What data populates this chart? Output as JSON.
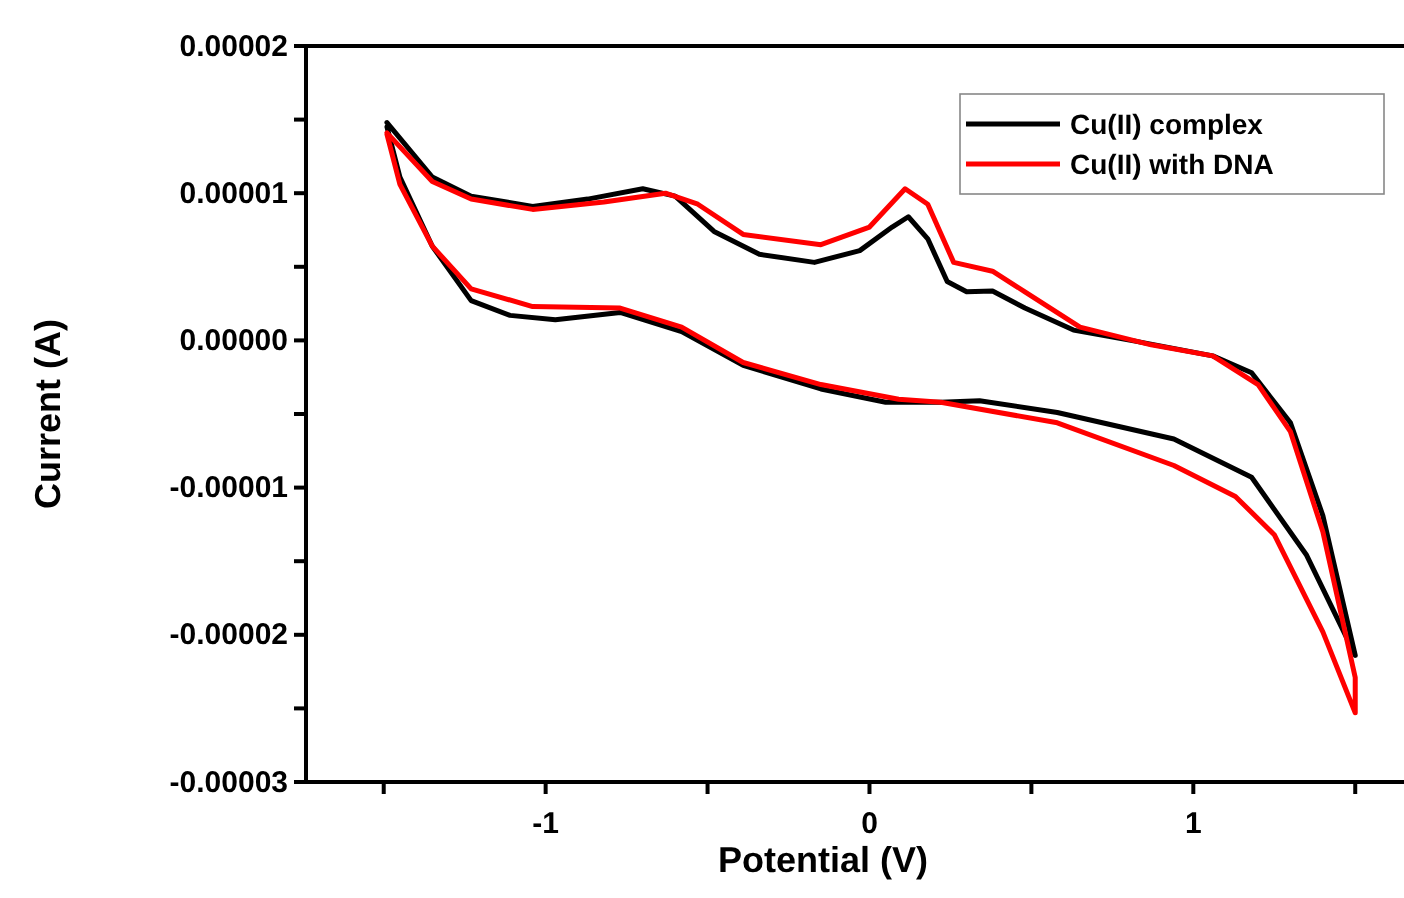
{
  "chart_data": {
    "type": "line",
    "xlabel": "Potential (V)",
    "ylabel": "Current (A)",
    "xlim": [
      -1.74,
      1.7
    ],
    "ylim": [
      -3e-05,
      2e-05
    ],
    "xticks": [
      {
        "value": -1.5,
        "label": null
      },
      {
        "value": -1,
        "label": "-1"
      },
      {
        "value": -0.5,
        "label": null
      },
      {
        "value": 0,
        "label": "0"
      },
      {
        "value": 0.5,
        "label": null
      },
      {
        "value": 1,
        "label": "1"
      },
      {
        "value": 1.5,
        "label": null
      }
    ],
    "yticks": [
      {
        "value": -3e-05,
        "label": "-0.00003"
      },
      {
        "value": -2.5e-05,
        "label": null
      },
      {
        "value": -2e-05,
        "label": "-0.00002"
      },
      {
        "value": -1.5e-05,
        "label": null
      },
      {
        "value": -1e-05,
        "label": "-0.00001"
      },
      {
        "value": -5e-06,
        "label": null
      },
      {
        "value": 0,
        "label": "0.00000"
      },
      {
        "value": 5e-06,
        "label": null
      },
      {
        "value": 1e-05,
        "label": "0.00001"
      },
      {
        "value": 1.5e-05,
        "label": null
      },
      {
        "value": 2e-05,
        "label": "0.00002"
      }
    ],
    "grid": false,
    "legend": "top right",
    "marker": "none",
    "line_style": "solid",
    "series": [
      {
        "name": "Cu(II) complex",
        "color": "#000000",
        "x": [
          -1.49,
          -1.35,
          -1.23,
          -1.04,
          -0.87,
          -0.7,
          -0.6,
          -0.48,
          -0.34,
          -0.17,
          -0.03,
          0.07,
          0.12,
          0.18,
          0.24,
          0.3,
          0.38,
          0.48,
          0.63,
          0.82,
          1.06,
          1.18,
          1.3,
          1.4,
          1.5,
          1.35,
          1.18,
          0.94,
          0.58,
          0.34,
          0.22,
          0.05,
          -0.15,
          -0.39,
          -0.58,
          -0.77,
          -0.97,
          -1.11,
          -1.23,
          -1.35,
          -1.45,
          -1.49
        ],
        "values": [
          1.48e-05,
          1.11e-05,
          9.8e-06,
          9.1e-06,
          9.6e-06,
          1.03e-05,
          9.8e-06,
          7.4e-06,
          5.85e-06,
          5.3e-06,
          6.1e-06,
          7.7e-06,
          8.4e-06,
          6.9e-06,
          4e-06,
          3.3e-06,
          3.35e-06,
          2.2e-06,
          7e-07,
          -5e-08,
          -1.05e-06,
          -2.2e-06,
          -5.6e-06,
          -1.19e-05,
          -2.14e-05,
          -1.46e-05,
          -9.3e-06,
          -6.7e-06,
          -4.9e-06,
          -4.1e-06,
          -4.2e-06,
          -4.2e-06,
          -3.3e-06,
          -1.7e-06,
          6e-07,
          1.9e-06,
          1.4e-06,
          1.7e-06,
          2.7e-06,
          6.4e-06,
          1.11e-05,
          1.45e-05
        ]
      },
      {
        "name": "Cu(II) with DNA",
        "color": "#ff0000",
        "x": [
          -1.49,
          -1.35,
          -1.23,
          -1.04,
          -0.82,
          -0.63,
          -0.53,
          -0.39,
          -0.15,
          0.0,
          0.11,
          0.18,
          0.26,
          0.38,
          0.48,
          0.65,
          0.87,
          1.06,
          1.2,
          1.3,
          1.4,
          1.5,
          1.5,
          1.4,
          1.25,
          1.13,
          0.94,
          0.58,
          0.22,
          0.09,
          -0.15,
          -0.39,
          -0.58,
          -0.77,
          -1.04,
          -1.23,
          -1.35,
          -1.45,
          -1.49
        ],
        "values": [
          1.41e-05,
          1.08e-05,
          9.6e-06,
          8.9e-06,
          9.4e-06,
          1e-05,
          9.25e-06,
          7.2e-06,
          6.5e-06,
          7.7e-06,
          1.03e-05,
          9.25e-06,
          5.3e-06,
          4.7e-06,
          3.3e-06,
          9e-07,
          -3e-07,
          -1.05e-06,
          -3e-06,
          -6.2e-06,
          -1.3e-05,
          -2.29e-05,
          -2.53e-05,
          -1.98e-05,
          -1.32e-05,
          -1.06e-05,
          -8.5e-06,
          -5.6e-06,
          -4.2e-06,
          -4e-06,
          -3e-06,
          -1.5e-06,
          9e-07,
          2.2e-06,
          2.3e-06,
          3.5e-06,
          6.4e-06,
          1.06e-05,
          1.4e-05
        ]
      }
    ]
  }
}
